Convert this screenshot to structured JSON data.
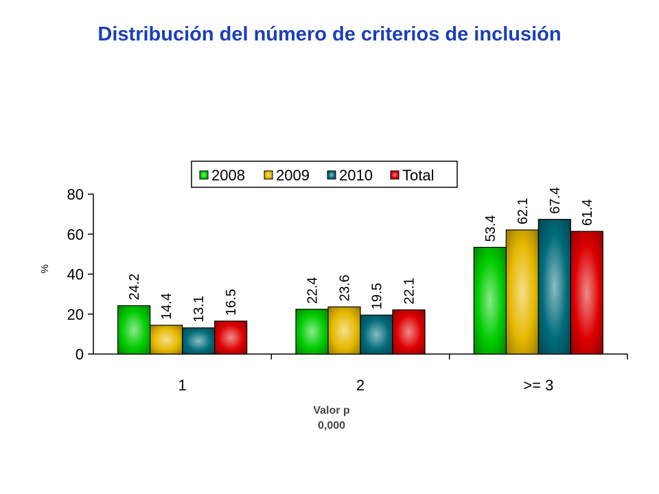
{
  "title": "Distribución del número de criterios de inclusión",
  "note": {
    "line1": "Valor p",
    "line2": "0,000"
  },
  "chart_data": {
    "type": "bar",
    "categories": [
      "1",
      "2",
      ">= 3"
    ],
    "series": [
      {
        "name": "2008",
        "values": [
          24.2,
          22.4,
          53.4
        ],
        "color": "#00cc00"
      },
      {
        "name": "2009",
        "values": [
          14.4,
          23.6,
          62.1
        ],
        "color": "#e6b800"
      },
      {
        "name": "2010",
        "values": [
          13.1,
          19.5,
          67.4
        ],
        "color": "#006b7a"
      },
      {
        "name": "Total",
        "values": [
          16.5,
          22.1,
          61.4
        ],
        "color": "#dd0000"
      }
    ],
    "ylabel": "%",
    "xlabel": "",
    "ylim": [
      0,
      80
    ],
    "yticks": [
      "0",
      "20",
      "40",
      "60",
      "80"
    ],
    "grid": false,
    "legend_position": "top"
  }
}
